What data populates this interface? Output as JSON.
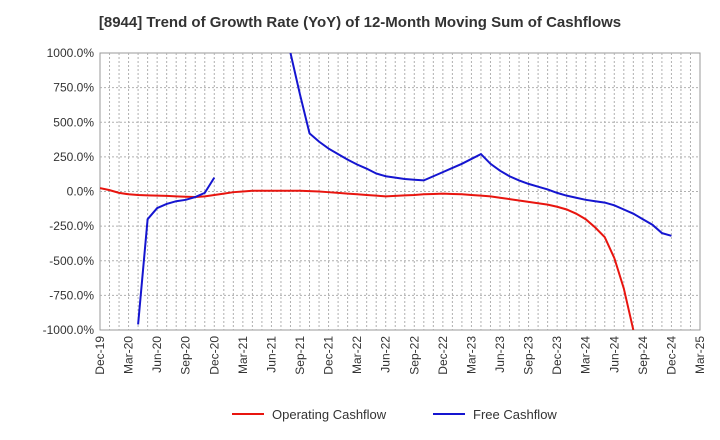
{
  "chart_data": {
    "type": "line",
    "title": "[8944]  Trend of Growth Rate (YoY) of 12-Month Moving Sum of Cashflows",
    "xlabel": "",
    "ylabel": "",
    "ylim": [
      -1000,
      1000
    ],
    "y_ticks": [
      "1000.0%",
      "750.0%",
      "500.0%",
      "250.0%",
      "0.0%",
      "-250.0%",
      "-500.0%",
      "-750.0%",
      "-1000.0%"
    ],
    "x_ticks": [
      "Dec-19",
      "Mar-20",
      "Jun-20",
      "Sep-20",
      "Dec-20",
      "Mar-21",
      "Jun-21",
      "Sep-21",
      "Dec-21",
      "Mar-22",
      "Jun-22",
      "Sep-22",
      "Dec-22",
      "Mar-23",
      "Jun-23",
      "Sep-23",
      "Dec-23",
      "Mar-24",
      "Jun-24",
      "Sep-24",
      "Dec-24",
      "Mar-25"
    ],
    "x_range_months": [
      0,
      63
    ],
    "grid": true,
    "legend_position": "bottom",
    "series": [
      {
        "name": "Operating Cashflow",
        "color": "#e8150f",
        "points": [
          [
            0,
            25
          ],
          [
            1,
            10
          ],
          [
            2,
            -10
          ],
          [
            3,
            -20
          ],
          [
            4,
            -25
          ],
          [
            5,
            -28
          ],
          [
            6,
            -30
          ],
          [
            7,
            -32
          ],
          [
            8,
            -35
          ],
          [
            9,
            -38
          ],
          [
            10,
            -40
          ],
          [
            11,
            -35
          ],
          [
            12,
            -25
          ],
          [
            13,
            -15
          ],
          [
            14,
            -5
          ],
          [
            15,
            0
          ],
          [
            16,
            5
          ],
          [
            17,
            5
          ],
          [
            18,
            5
          ],
          [
            19,
            5
          ],
          [
            20,
            5
          ],
          [
            21,
            5
          ],
          [
            22,
            3
          ],
          [
            23,
            0
          ],
          [
            24,
            -5
          ],
          [
            25,
            -10
          ],
          [
            26,
            -15
          ],
          [
            27,
            -20
          ],
          [
            28,
            -25
          ],
          [
            29,
            -30
          ],
          [
            30,
            -35
          ],
          [
            31,
            -32
          ],
          [
            32,
            -28
          ],
          [
            33,
            -25
          ],
          [
            34,
            -20
          ],
          [
            35,
            -18
          ],
          [
            36,
            -15
          ],
          [
            37,
            -18
          ],
          [
            38,
            -20
          ],
          [
            39,
            -25
          ],
          [
            40,
            -30
          ],
          [
            41,
            -35
          ],
          [
            42,
            -45
          ],
          [
            43,
            -55
          ],
          [
            44,
            -65
          ],
          [
            45,
            -75
          ],
          [
            46,
            -85
          ],
          [
            47,
            -95
          ],
          [
            48,
            -110
          ],
          [
            49,
            -130
          ],
          [
            50,
            -160
          ],
          [
            51,
            -200
          ],
          [
            52,
            -260
          ],
          [
            53,
            -330
          ],
          [
            54,
            -480
          ],
          [
            55,
            -700
          ],
          [
            56,
            -1000
          ]
        ]
      },
      {
        "name": "Free Cashflow",
        "color": "#1515d0",
        "points": [
          [
            4,
            -960
          ],
          [
            5,
            -200
          ],
          [
            6,
            -120
          ],
          [
            7,
            -90
          ],
          [
            8,
            -70
          ],
          [
            9,
            -60
          ],
          [
            10,
            -40
          ],
          [
            11,
            -10
          ],
          [
            12,
            100
          ],
          [
            20,
            1000
          ],
          [
            21,
            700
          ],
          [
            22,
            420
          ],
          [
            23,
            360
          ],
          [
            24,
            310
          ],
          [
            25,
            270
          ],
          [
            26,
            230
          ],
          [
            27,
            195
          ],
          [
            28,
            165
          ],
          [
            29,
            130
          ],
          [
            30,
            110
          ],
          [
            31,
            100
          ],
          [
            32,
            90
          ],
          [
            33,
            85
          ],
          [
            34,
            80
          ],
          [
            35,
            110
          ],
          [
            36,
            140
          ],
          [
            37,
            170
          ],
          [
            38,
            200
          ],
          [
            39,
            235
          ],
          [
            40,
            270
          ],
          [
            41,
            200
          ],
          [
            42,
            150
          ],
          [
            43,
            110
          ],
          [
            44,
            80
          ],
          [
            45,
            55
          ],
          [
            46,
            35
          ],
          [
            47,
            15
          ],
          [
            48,
            -10
          ],
          [
            49,
            -30
          ],
          [
            50,
            -45
          ],
          [
            51,
            -60
          ],
          [
            52,
            -70
          ],
          [
            53,
            -80
          ],
          [
            54,
            -100
          ],
          [
            55,
            -130
          ],
          [
            56,
            -160
          ],
          [
            57,
            -200
          ],
          [
            58,
            -240
          ],
          [
            59,
            -300
          ],
          [
            60,
            -320
          ]
        ]
      }
    ]
  }
}
